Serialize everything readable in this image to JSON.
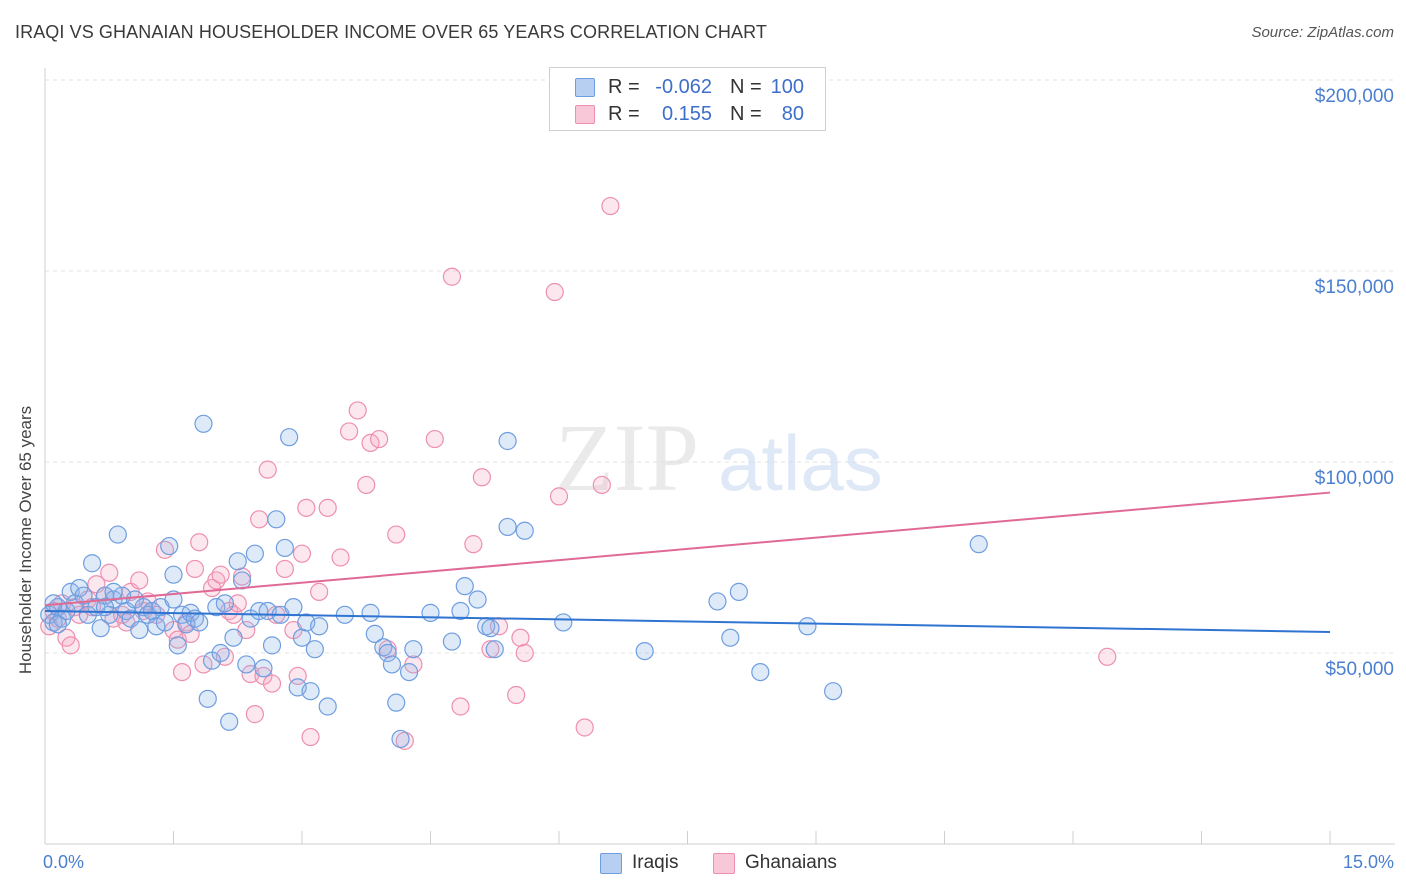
{
  "title": "IRAQI VS GHANAIAN HOUSEHOLDER INCOME OVER 65 YEARS CORRELATION CHART",
  "source": "Source: ZipAtlas.com",
  "watermark": {
    "zip": "ZIP",
    "atlas": "atlas"
  },
  "legend": {
    "iraqis": {
      "r_label": "R =",
      "r_value": "-0.062",
      "n_label": "N =",
      "n_value": "100",
      "color": "#aac8f0"
    },
    "ghanaians": {
      "r_label": "R =",
      "r_value": "0.155",
      "n_label": "N =",
      "n_value": "80",
      "color": "#f6b8cc"
    }
  },
  "bottom_legend": {
    "iraqis": "Iraqis",
    "ghanaians": "Ghanaians"
  },
  "y_ticks": [
    "$200,000",
    "$150,000",
    "$100,000",
    "$50,000"
  ],
  "x_ticks": {
    "min": "0.0%",
    "max": "15.0%"
  },
  "colors": {
    "iraqis_stroke": "#6e9ee0",
    "iraqis_fill": "rgba(140,180,235,0.28)",
    "iraqis_line": "#2f74d0",
    "ghanaians_stroke": "#ee8fb0",
    "ghanaians_fill": "rgba(245,170,195,0.28)",
    "ghanaians_line": "#e06a96"
  },
  "chart_data": {
    "type": "scatter",
    "title": "IRAQI VS GHANAIAN HOUSEHOLDER INCOME OVER 65 YEARS CORRELATION CHART",
    "xlabel": "",
    "ylabel": "Householder Income Over 65 years",
    "xlim": [
      0,
      15
    ],
    "ylim": [
      0,
      205000
    ],
    "x_unit": "%",
    "grid": true,
    "legend_position": "top-center",
    "series": [
      {
        "name": "Iraqis",
        "trend": {
          "x": [
            0,
            15
          ],
          "y": [
            61000,
            55500
          ]
        },
        "points": [
          [
            0.05,
            60000
          ],
          [
            0.1,
            58000
          ],
          [
            0.15,
            62000
          ],
          [
            0.2,
            59000
          ],
          [
            0.25,
            61000
          ],
          [
            0.3,
            66000
          ],
          [
            0.35,
            63000
          ],
          [
            0.4,
            67000
          ],
          [
            0.45,
            65000
          ],
          [
            0.5,
            60000
          ],
          [
            0.55,
            73500
          ],
          [
            0.6,
            62000
          ],
          [
            0.65,
            56500
          ],
          [
            0.7,
            65000
          ],
          [
            0.75,
            60000
          ],
          [
            0.8,
            64000
          ],
          [
            0.85,
            81000
          ],
          [
            0.9,
            65000
          ],
          [
            0.95,
            61000
          ],
          [
            1.0,
            59000
          ],
          [
            0.8,
            66000
          ],
          [
            0.7,
            62000
          ],
          [
            1.05,
            64000
          ],
          [
            1.1,
            56000
          ],
          [
            1.15,
            62000
          ],
          [
            1.2,
            60000
          ],
          [
            1.25,
            61000
          ],
          [
            1.3,
            57000
          ],
          [
            1.35,
            62000
          ],
          [
            1.4,
            58000
          ],
          [
            1.45,
            78000
          ],
          [
            1.5,
            70500
          ],
          [
            1.5,
            64000
          ],
          [
            1.55,
            52000
          ],
          [
            1.6,
            60000
          ],
          [
            1.65,
            57500
          ],
          [
            1.7,
            60500
          ],
          [
            1.75,
            59000
          ],
          [
            1.8,
            58000
          ],
          [
            1.85,
            110000
          ],
          [
            1.9,
            38000
          ],
          [
            1.95,
            48000
          ],
          [
            2.0,
            62000
          ],
          [
            2.05,
            50000
          ],
          [
            2.1,
            63000
          ],
          [
            2.15,
            32000
          ],
          [
            2.2,
            54000
          ],
          [
            2.25,
            74000
          ],
          [
            2.3,
            69000
          ],
          [
            2.35,
            47000
          ],
          [
            2.4,
            59000
          ],
          [
            2.45,
            76000
          ],
          [
            2.5,
            61000
          ],
          [
            2.55,
            46000
          ],
          [
            2.6,
            61000
          ],
          [
            2.65,
            52000
          ],
          [
            2.7,
            85000
          ],
          [
            2.75,
            60000
          ],
          [
            2.8,
            77500
          ],
          [
            2.85,
            106500
          ],
          [
            2.9,
            62000
          ],
          [
            2.95,
            41000
          ],
          [
            3.0,
            54000
          ],
          [
            3.05,
            58000
          ],
          [
            3.1,
            40000
          ],
          [
            3.15,
            51000
          ],
          [
            3.2,
            57000
          ],
          [
            3.3,
            36000
          ],
          [
            3.5,
            60000
          ],
          [
            3.8,
            60500
          ],
          [
            3.85,
            55000
          ],
          [
            3.95,
            51500
          ],
          [
            4.0,
            50000
          ],
          [
            4.05,
            47000
          ],
          [
            4.1,
            37000
          ],
          [
            4.15,
            27500
          ],
          [
            4.25,
            45000
          ],
          [
            4.3,
            51000
          ],
          [
            4.5,
            60500
          ],
          [
            4.75,
            53000
          ],
          [
            4.85,
            61000
          ],
          [
            4.9,
            67500
          ],
          [
            5.05,
            64000
          ],
          [
            5.15,
            57000
          ],
          [
            5.2,
            56500
          ],
          [
            5.25,
            51000
          ],
          [
            5.4,
            83000
          ],
          [
            5.4,
            105500
          ],
          [
            5.6,
            82000
          ],
          [
            6.05,
            58000
          ],
          [
            7.0,
            50500
          ],
          [
            7.85,
            63500
          ],
          [
            8.1,
            66000
          ],
          [
            8.0,
            54000
          ],
          [
            8.35,
            45000
          ],
          [
            8.9,
            57000
          ],
          [
            9.2,
            40000
          ],
          [
            10.9,
            78500
          ],
          [
            0.1,
            63000
          ],
          [
            0.15,
            57500
          ]
        ]
      },
      {
        "name": "Ghanaians",
        "trend": {
          "x": [
            0,
            15
          ],
          "y": [
            62500,
            92000
          ]
        },
        "points": [
          [
            0.05,
            57000
          ],
          [
            0.1,
            61000
          ],
          [
            0.15,
            59000
          ],
          [
            0.2,
            63000
          ],
          [
            0.25,
            54000
          ],
          [
            0.3,
            52000
          ],
          [
            0.35,
            62000
          ],
          [
            0.4,
            60000
          ],
          [
            0.5,
            64000
          ],
          [
            0.55,
            62000
          ],
          [
            0.6,
            68000
          ],
          [
            0.7,
            65000
          ],
          [
            0.75,
            71000
          ],
          [
            0.8,
            59000
          ],
          [
            0.9,
            60000
          ],
          [
            0.95,
            58000
          ],
          [
            1.0,
            66000
          ],
          [
            1.1,
            69000
          ],
          [
            1.15,
            61000
          ],
          [
            1.2,
            63500
          ],
          [
            1.3,
            60000
          ],
          [
            1.4,
            77000
          ],
          [
            1.5,
            56000
          ],
          [
            1.55,
            53500
          ],
          [
            1.6,
            45000
          ],
          [
            1.65,
            58000
          ],
          [
            1.7,
            55000
          ],
          [
            1.75,
            72000
          ],
          [
            1.8,
            79000
          ],
          [
            1.85,
            47000
          ],
          [
            1.95,
            67000
          ],
          [
            2.0,
            69000
          ],
          [
            2.05,
            70500
          ],
          [
            2.1,
            49000
          ],
          [
            2.15,
            61000
          ],
          [
            2.2,
            60000
          ],
          [
            2.25,
            63000
          ],
          [
            2.3,
            70000
          ],
          [
            2.35,
            56000
          ],
          [
            2.4,
            44500
          ],
          [
            2.45,
            34000
          ],
          [
            2.5,
            85000
          ],
          [
            2.55,
            44000
          ],
          [
            2.6,
            98000
          ],
          [
            2.65,
            42000
          ],
          [
            2.7,
            60000
          ],
          [
            2.8,
            72000
          ],
          [
            2.9,
            56000
          ],
          [
            2.95,
            44000
          ],
          [
            3.0,
            76000
          ],
          [
            3.05,
            88000
          ],
          [
            3.1,
            28000
          ],
          [
            3.2,
            66000
          ],
          [
            3.3,
            88000
          ],
          [
            3.45,
            75000
          ],
          [
            3.55,
            108000
          ],
          [
            3.65,
            113500
          ],
          [
            3.75,
            94000
          ],
          [
            3.8,
            105000
          ],
          [
            3.9,
            106000
          ],
          [
            4.0,
            51000
          ],
          [
            4.1,
            81000
          ],
          [
            4.2,
            27000
          ],
          [
            4.3,
            47000
          ],
          [
            4.55,
            106000
          ],
          [
            4.75,
            148500
          ],
          [
            4.85,
            36000
          ],
          [
            5.0,
            78500
          ],
          [
            5.1,
            96000
          ],
          [
            5.2,
            51000
          ],
          [
            5.3,
            57000
          ],
          [
            5.5,
            39000
          ],
          [
            5.55,
            54000
          ],
          [
            5.6,
            50000
          ],
          [
            5.95,
            144500
          ],
          [
            6.0,
            91000
          ],
          [
            6.3,
            30500
          ],
          [
            6.5,
            94000
          ],
          [
            6.6,
            167000
          ],
          [
            12.4,
            49000
          ]
        ]
      }
    ]
  }
}
